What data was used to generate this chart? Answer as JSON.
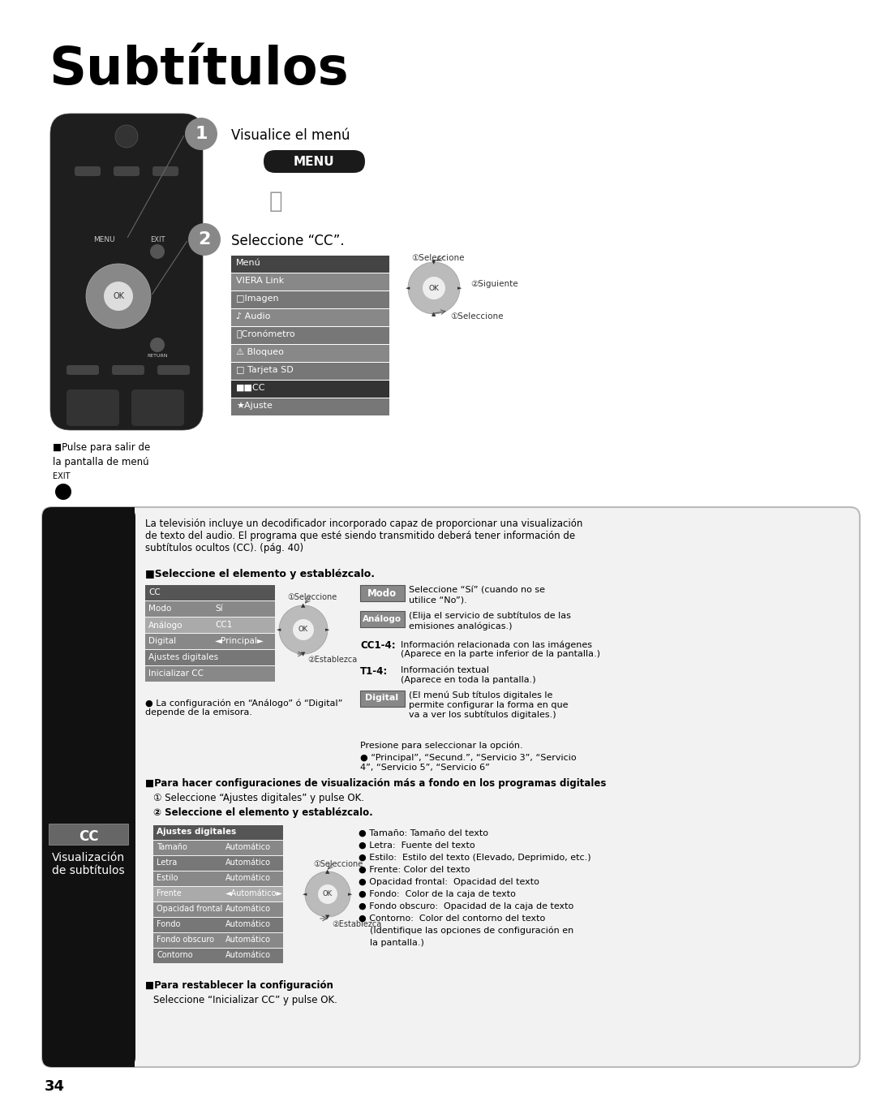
{
  "title": "Subtítulos",
  "bg_color": "#ffffff",
  "page_number": "34",
  "step1_label": "Visualice el menú",
  "step2_label": "Seleccione “CC”.",
  "menu_items": [
    "Menú",
    "VIERA Link",
    "□Imagen",
    "♪ Audio",
    "⏰Cronómetro",
    "⚠ Bloqueo",
    "□ Tarjeta SD",
    "■■CC",
    "★Ajuste"
  ],
  "menu_highlight": 7,
  "pulse_text1": "■Pulse para salir de",
  "pulse_text2": "la pantalla de menú",
  "exit_label": "EXIT",
  "info_text": "La televisión incluye un decodificador incorporado capaz de proporcionar una visualización\nde texto del audio. El programa que esté siendo transmitido deberá tener información de\nsubtítulos ocultos (CC). (pág. 40)",
  "select_elem_label": "■Seleccione el elemento y establézcalo.",
  "cc_menu_rows": [
    [
      "CC",
      "",
      "#555555",
      "#555555"
    ],
    [
      "Modo",
      "Sí",
      "#777777",
      "#888888"
    ],
    [
      "Análogo",
      "CC1",
      "#999999",
      "#888888"
    ],
    [
      "Digital",
      "◄Principal►",
      "#888888",
      "#aaaaaa"
    ],
    [
      "Ajustes digitales",
      "",
      "#777777",
      "#888888"
    ],
    [
      "Inicializar CC",
      "",
      "#888888",
      "#888888"
    ]
  ],
  "sel1_label": "①Seleccione",
  "est2_label": "②Establezca",
  "sig2_label": "②Siguiente",
  "modo_label": "Modo",
  "modo_desc": "Seleccione “Sí” (cuando no se\nutilice “No”).",
  "analogo_label": "Análogo",
  "analogo_desc": "(Elija el servicio de subtítulos de las\nemisiones analógicas.)",
  "cc14_label": "CC1-4:",
  "cc14_desc": "Información relacionada con las imágenes\n(Aparece en la parte inferior de la pantalla.)",
  "t14_label": "T1-4:",
  "t14_desc": "Información textual\n(Aparece en toda la pantalla.)",
  "digital_label": "Digital",
  "digital_desc": "(El menú Sub títulos digitales le\npermite configurar la forma en que\nva a ver los subtítulos digitales.)",
  "presione_label": "Presione para seleccionar la opción.",
  "presione_desc": "● “Principal”, “Secund.”, “Servicio 3”, “Servicio\n4”, “Servicio 5”, “Servicio 6”",
  "config_note": "● La configuración en “Análogo” ó “Digital”\ndepende de la emisora.",
  "cc_sidebar_title": "CC",
  "cc_sidebar_subtitle": "Visualización\nde subtítulos",
  "para_hacer_label": "■Para hacer configuraciones de visualización más a fondo en los programas digitales",
  "step_a": "① Seleccione “Ajustes digitales” y pulse OK.",
  "step_b": "② Seleccione el elemento y establézcalo.",
  "adj_rows": [
    [
      "Ajustes digitales",
      "",
      "#555555"
    ],
    [
      "Tamaño",
      "Automático",
      "#888888"
    ],
    [
      "Letra",
      "Automático",
      "#777777"
    ],
    [
      "Estilo",
      "Automático",
      "#888888"
    ],
    [
      "Frente",
      "◄Automático►",
      "#aaaaaa"
    ],
    [
      "Opacidad frontal",
      "Automático",
      "#888888"
    ],
    [
      "Fondo",
      "Automático",
      "#777777"
    ],
    [
      "Fondo obscuro",
      "Automático",
      "#888888"
    ],
    [
      "Contorno",
      "Automático",
      "#777777"
    ]
  ],
  "bullet_items": [
    "● Tamaño: Tamaño del texto",
    "● Letra:  Fuente del texto",
    "● Estilo:  Estilo del texto (Elevado, Deprimido, etc.)",
    "● Frente: Color del texto",
    "● Opacidad frontal:  Opacidad del texto",
    "● Fondo:  Color de la caja de texto",
    "● Fondo obscuro:  Opacidad de la caja de texto",
    "● Contorno:  Color del contorno del texto",
    "    (Identifique las opciones de configuración en",
    "    la pantalla.)"
  ],
  "para_rest1": "■Para restablecer la configuración",
  "para_rest2": "Seleccione “Inicializar CC” y pulse OK."
}
